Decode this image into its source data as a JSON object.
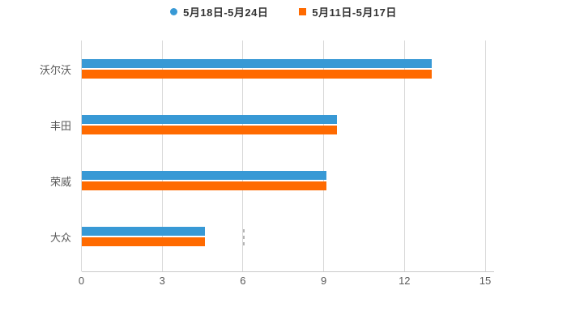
{
  "background_color": "#ffffff",
  "legend": {
    "items": [
      {
        "label": "5月18日-5月24日",
        "color": "#3899d5",
        "marker": "circle"
      },
      {
        "label": "5月11日-5月17日",
        "color": "#ff6a00",
        "marker": "square"
      }
    ]
  },
  "chart_data": {
    "type": "bar",
    "orientation": "horizontal",
    "title": "",
    "xlabel": "",
    "ylabel": "",
    "categories": [
      "沃尔沃",
      "丰田",
      "荣威",
      "大众"
    ],
    "series": [
      {
        "name": "5月18日-5月24日",
        "color": "#3899d5",
        "values": [
          13.0,
          9.5,
          9.1,
          4.6
        ]
      },
      {
        "name": "5月11日-5月17日",
        "color": "#ff6a00",
        "values": [
          13.0,
          9.5,
          9.1,
          4.6
        ]
      }
    ],
    "xlim": [
      0,
      15
    ],
    "xticks": [
      0,
      3,
      6,
      9,
      12,
      15
    ],
    "grid": true,
    "legend_position": "top",
    "colors": {
      "gridline": "#d9d9d9",
      "axis_line": "#c9c9c9",
      "tick_label": "#595959",
      "category_label": "#595959",
      "legend_text": "#333333"
    }
  }
}
